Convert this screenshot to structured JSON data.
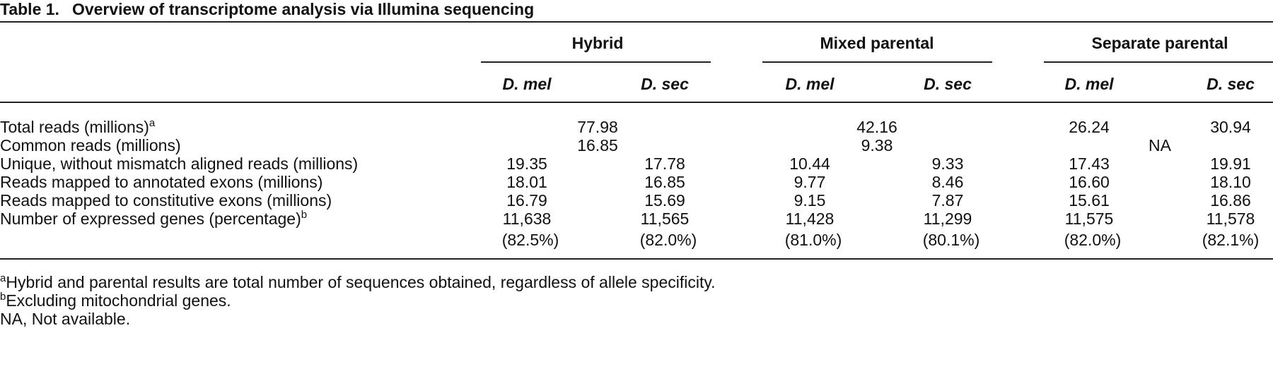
{
  "table": {
    "label": "Table 1.",
    "title": "Overview of transcriptome analysis via Illumina sequencing",
    "groups": [
      "Hybrid",
      "Mixed parental",
      "Separate parental"
    ],
    "species": [
      "D. mel",
      "D. sec",
      "D. mel",
      "D. sec",
      "D. mel",
      "D. sec"
    ],
    "rows": [
      {
        "label": "Total reads (millions)",
        "sup": "a",
        "merged": [
          "77.98",
          "42.16"
        ],
        "sep": [
          "26.24",
          "30.94"
        ]
      },
      {
        "label": "Common reads (millions)",
        "merged": [
          "16.85",
          "9.38",
          "NA"
        ]
      },
      {
        "label": "Unique, without mismatch aligned reads (millions)",
        "values": [
          "19.35",
          "17.78",
          "10.44",
          "9.33",
          "17.43",
          "19.91"
        ]
      },
      {
        "label": "Reads mapped to annotated exons (millions)",
        "values": [
          "18.01",
          "16.85",
          "9.77",
          "8.46",
          "16.60",
          "18.10"
        ]
      },
      {
        "label": "Reads mapped to constitutive exons (millions)",
        "values": [
          "16.79",
          "15.69",
          "9.15",
          "7.87",
          "15.61",
          "16.86"
        ]
      },
      {
        "label": "Number of expressed genes (percentage)",
        "sup": "b",
        "values": [
          "11,638",
          "11,565",
          "11,428",
          "11,299",
          "11,575",
          "11,578"
        ],
        "percentages": [
          "(82.5%)",
          "(82.0%)",
          "(81.0%)",
          "(80.1%)",
          "(82.0%)",
          "(82.1%)"
        ]
      }
    ],
    "footnotes": [
      {
        "sup": "a",
        "text": "Hybrid and parental results are total number of sequences obtained, regardless of allele specificity."
      },
      {
        "sup": "b",
        "text": "Excluding mitochondrial genes."
      },
      {
        "sup": "",
        "text": "NA, Not available."
      }
    ]
  }
}
